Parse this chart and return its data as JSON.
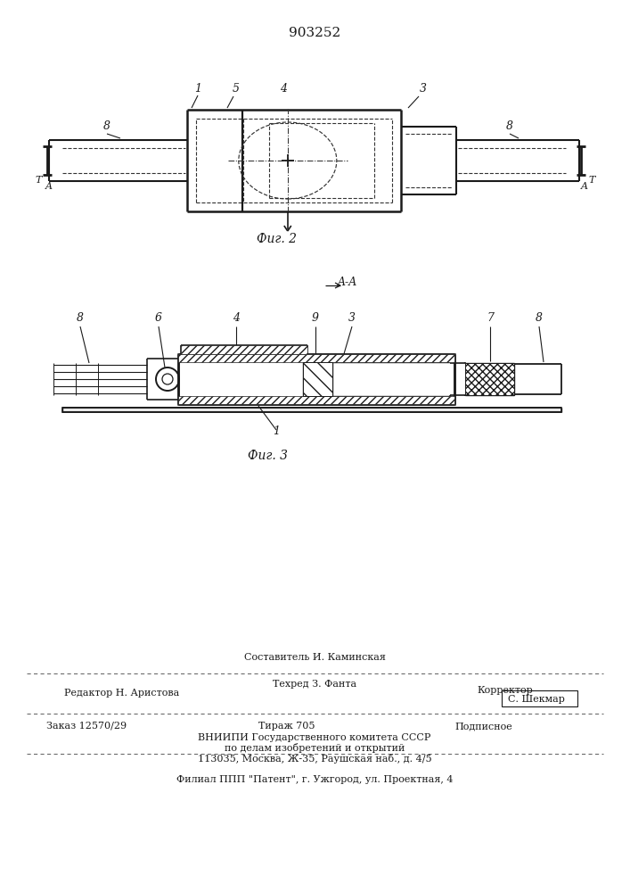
{
  "patent_number": "903252",
  "fig2_caption": "Фиг. 2",
  "fig3_caption": "Фиг. 3",
  "bg_color": "#ffffff",
  "line_color": "#1a1a1a",
  "dashed_color": "#333333",
  "footer_col1_row1": "Составитель И. Каминская",
  "footer_col1_row2": "Техред З. Фанта",
  "footer_left1": "Редактор Н. Аристова",
  "footer_right1": "Корректор",
  "footer_right1b": "С. Шекмар",
  "footer_left2": "Заказ 12570/29",
  "footer_mid2": "Тираж 705",
  "footer_right2": "Подписное",
  "footer_line4": "ВНИИПИ Государственного комитета СССР",
  "footer_line5": "по делам изобретений и открытий",
  "footer_line6": "113035, Москва, Ж-35, Раушская наб., д. 4/5",
  "footer_line7": "Филиал ППП \"Патент\", г. Ужгород, ул. Проектная, 4"
}
